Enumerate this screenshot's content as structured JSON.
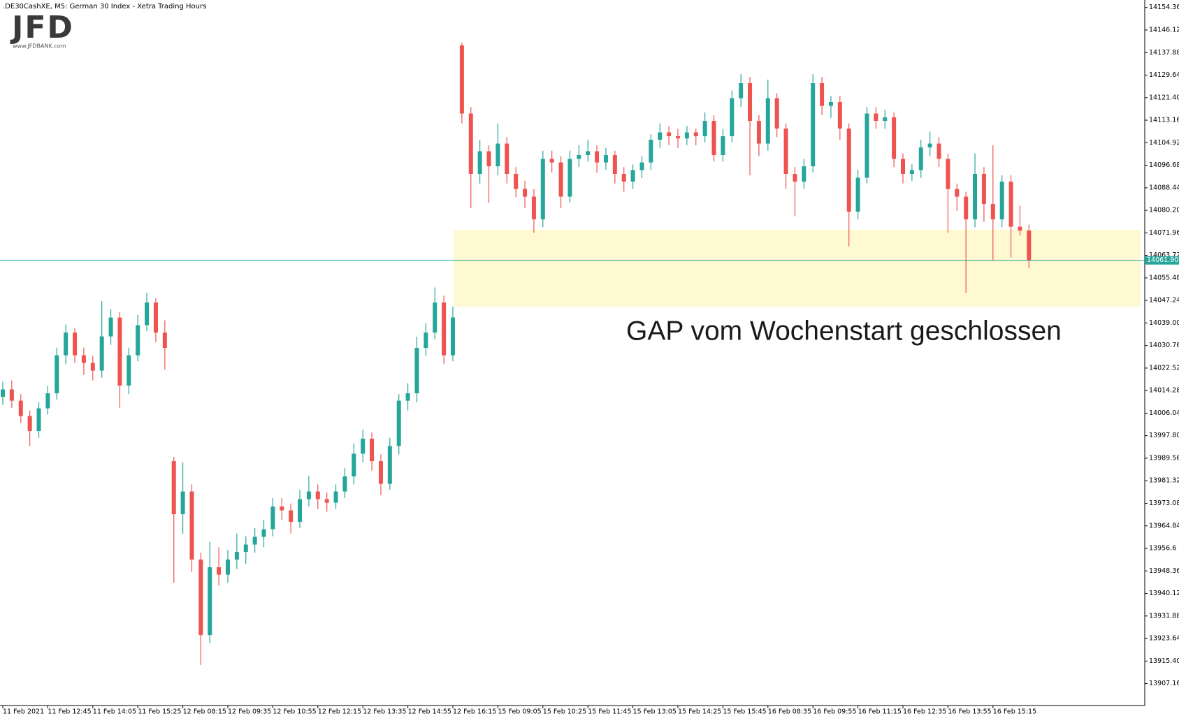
{
  "logo": {
    "text": "JFD",
    "url": "www.JFDBANK.com"
  },
  "chart_data": {
    "type": "candlestick",
    "title": ".DE30CashXE, M5:  German 30 Index  - Xetra Trading Hours",
    "annotation": "GAP vom Wochenstart geschlossen",
    "up_color": "#26a69a",
    "down_color": "#ef5350",
    "highlight": {
      "from": 14044.9,
      "to": 14073.1,
      "color": "#fff9d2"
    },
    "current_price": {
      "value": 14061.9,
      "label": "14061.90",
      "color": "#26a69a"
    },
    "grid": false,
    "ylim": [
      13899.14,
      14157.1
    ],
    "yticks": [
      14154.36,
      14146.12,
      14137.88,
      14129.64,
      {
        "value": 14121.4,
        "label": "14121.40"
      },
      14113.16,
      14104.92,
      14096.68,
      14088.44,
      {
        "value": 14080.2,
        "label": "14080.20"
      },
      14071.96,
      14063.72,
      14055.48,
      14047.24,
      {
        "value": 14039,
        "label": "14039.00"
      },
      14030.76,
      14022.52,
      14014.28,
      14006.04,
      {
        "value": 13997.8,
        "label": "13997.80"
      },
      13989.56,
      13981.32,
      13973.08,
      13964.84,
      13956.6,
      13948.36,
      13940.12,
      13931.88,
      13923.64,
      {
        "value": 13915.4,
        "label": "13915.40"
      },
      13907.16
    ],
    "categories": [
      "11 Feb 2021",
      null,
      null,
      null,
      null,
      "11 Feb 12:45",
      null,
      null,
      null,
      null,
      "11 Feb 14:05",
      null,
      null,
      null,
      null,
      "11 Feb 15:25",
      null,
      null,
      null,
      null,
      "12 Feb 08:15",
      null,
      null,
      null,
      null,
      "12 Feb 09:35",
      null,
      null,
      null,
      null,
      "12 Feb 10:55",
      null,
      null,
      null,
      null,
      "12 Feb 12:15",
      null,
      null,
      null,
      null,
      "12 Feb 13:35",
      null,
      null,
      null,
      null,
      "12 Feb 14:55",
      null,
      null,
      null,
      null,
      "12 Feb 16:15",
      null,
      null,
      null,
      null,
      "15 Feb 09:05",
      null,
      null,
      null,
      null,
      "15 Feb 10:25",
      null,
      null,
      null,
      null,
      "15 Feb 11:45",
      null,
      null,
      null,
      null,
      "15 Feb 13:05",
      null,
      null,
      null,
      null,
      "15 Feb 14:25",
      null,
      null,
      null,
      null,
      "15 Feb 15:45",
      null,
      null,
      null,
      null,
      "16 Feb 08:35",
      null,
      null,
      null,
      null,
      "16 Feb 09:55",
      null,
      null,
      null,
      null,
      "16 Feb 11:15",
      null,
      null,
      null,
      null,
      "16 Feb 12:35",
      null,
      null,
      null,
      null,
      "16 Feb 13:55",
      null,
      null,
      null,
      null,
      "16 Feb 15:15",
      null,
      null,
      null,
      null
    ],
    "open": [
      14012.0,
      14014.7,
      14010.6,
      14005.0,
      13999.5,
      14007.8,
      14013.3,
      14027.2,
      14035.5,
      14027.2,
      14024.4,
      14021.6,
      14034.1,
      14041.0,
      14016.1,
      14027.2,
      14038.2,
      14046.5,
      14035.5,
      13988.5,
      13969.1,
      13977.4,
      13952.5,
      13924.9,
      13949.7,
      13947.0,
      13952.5,
      13955.3,
      13958.0,
      13960.8,
      13963.6,
      13971.9,
      13970.5,
      13966.3,
      13974.6,
      13977.4,
      13974.6,
      13973.3,
      13977.4,
      13982.9,
      13991.2,
      13996.7,
      13988.5,
      13980.2,
      13994.0,
      14010.6,
      14013.3,
      14029.9,
      14035.5,
      14046.5,
      14027.2,
      14140.5,
      14115.6,
      14093.5,
      14101.8,
      14096.3,
      14104.6,
      14093.5,
      14088.0,
      14085.2,
      14076.9,
      14099.0,
      14097.7,
      14085.2,
      14099.0,
      14100.4,
      14101.8,
      14097.7,
      14100.4,
      14093.5,
      14090.7,
      14094.9,
      14097.7,
      14106.0,
      14108.7,
      14107.3,
      14106.5,
      14108.7,
      14107.3,
      14112.9,
      14100.4,
      14107.3,
      14121.2,
      14126.7,
      14112.9,
      14104.6,
      14121.2,
      14110.1,
      14093.5,
      14090.7,
      14096.3,
      14126.7,
      14118.4,
      14119.8,
      14110.1,
      14079.7,
      14092.1,
      14115.6,
      14112.9,
      14114.2,
      14099.0,
      14093.5,
      14094.9,
      14103.2,
      14104.6,
      14099.0,
      14088.0,
      14085.2,
      14076.9,
      14093.5,
      14082.5,
      14076.9,
      14090.7,
      14074.2,
      14072.8
    ],
    "high": [
      14017.5,
      14018.0,
      14013.0,
      14007.0,
      14010.0,
      14016.0,
      14030.0,
      14038.5,
      14037.0,
      14030.0,
      14027.0,
      14047.0,
      14044.0,
      14043.0,
      14030.0,
      14042.0,
      14050.0,
      14048.0,
      14040.0,
      13990.0,
      13988.0,
      13980.0,
      13955.0,
      13959.0,
      13957.0,
      13956.0,
      13962.0,
      13961.0,
      13964.0,
      13967.0,
      13975.0,
      13975.0,
      13973.0,
      13978.0,
      13983.0,
      13980.0,
      13977.0,
      13980.0,
      13986.0,
      13995.0,
      14000.0,
      13999.0,
      13991.0,
      13997.0,
      14013.0,
      14017.0,
      14034.0,
      14039.0,
      14052.0,
      14049.0,
      14045.0,
      14141.5,
      14118.0,
      14106.0,
      14104.0,
      14112.0,
      14107.0,
      14096.0,
      14091.0,
      14088.0,
      14102.0,
      14102.0,
      14100.0,
      14102.0,
      14104.0,
      14106.0,
      14104.0,
      14103.0,
      14102.0,
      14096.0,
      14097.0,
      14100.0,
      14108.0,
      14112.0,
      14111.0,
      14110.0,
      14111.0,
      14110.0,
      14116.0,
      14115.0,
      14110.0,
      14124.0,
      14130.0,
      14129.0,
      14115.0,
      14128.0,
      14123.0,
      14112.0,
      14096.0,
      14099.0,
      14130.0,
      14129.0,
      14122.0,
      14122.0,
      14112.0,
      14095.0,
      14118.0,
      14118.0,
      14117.0,
      14116.0,
      14101.0,
      14097.0,
      14106.0,
      14109.0,
      14107.0,
      14101.0,
      14090.0,
      14087.0,
      14101.0,
      14096.0,
      14104.0,
      14093.0,
      14093.0,
      14082.0,
      14075.0
    ],
    "low": [
      14009.0,
      14008.0,
      14002.5,
      13994.0,
      13997.0,
      14005.5,
      14011.0,
      14024.0,
      14024.5,
      14020.0,
      14018.0,
      14019.0,
      14031.0,
      14008.0,
      14013.0,
      14025.0,
      14036.0,
      14032.0,
      14022.0,
      13944.0,
      13962.0,
      13948.0,
      13914.0,
      13922.0,
      13943.0,
      13944.0,
      13949.0,
      13951.0,
      13955.0,
      13957.0,
      13961.0,
      13967.0,
      13962.0,
      13964.0,
      13972.0,
      13971.0,
      13970.0,
      13971.0,
      13975.0,
      13980.0,
      13988.0,
      13985.0,
      13976.0,
      13978.0,
      13991.0,
      14007.0,
      14010.0,
      14027.0,
      14033.0,
      14024.0,
      14025.0,
      14112.0,
      14081.0,
      14090.0,
      14083.0,
      14093.0,
      14090.0,
      14085.0,
      14081.0,
      14072.0,
      14074.0,
      14094.0,
      14081.0,
      14083.0,
      14096.0,
      14098.0,
      14094.0,
      14095.0,
      14090.0,
      14087.0,
      14088.0,
      14092.0,
      14095.0,
      14103.0,
      14104.0,
      14103.0,
      14104.0,
      14104.0,
      14105.0,
      14098.0,
      14098.0,
      14105.0,
      14118.0,
      14093.0,
      14100.0,
      14102.0,
      14107.0,
      14088.0,
      14078.0,
      14088.0,
      14094.0,
      14115.0,
      14114.0,
      14106.0,
      14067.0,
      14077.0,
      14090.0,
      14110.0,
      14110.0,
      14096.0,
      14090.0,
      14091.0,
      14092.0,
      14100.0,
      14096.0,
      14072.0,
      14080.0,
      14050.0,
      14074.0,
      14076.0,
      14062.0,
      14074.0,
      14063.0,
      14071.0,
      14059.0
    ],
    "close": [
      14014.7,
      14010.6,
      14005.0,
      13999.5,
      14007.8,
      14013.3,
      14027.2,
      14035.5,
      14027.2,
      14024.4,
      14021.6,
      14034.1,
      14041.0,
      14016.1,
      14027.2,
      14038.2,
      14046.5,
      14035.5,
      14029.9,
      13969.1,
      13977.4,
      13952.5,
      13924.9,
      13949.7,
      13947.0,
      13952.5,
      13955.3,
      13958.0,
      13960.8,
      13963.6,
      13971.9,
      13970.5,
      13966.3,
      13974.6,
      13977.4,
      13974.6,
      13973.3,
      13977.4,
      13982.9,
      13991.2,
      13996.7,
      13988.5,
      13980.2,
      13994.0,
      14010.6,
      14013.3,
      14029.9,
      14035.5,
      14046.5,
      14027.2,
      14041.0,
      14115.6,
      14093.5,
      14101.8,
      14096.3,
      14104.6,
      14093.5,
      14088.0,
      14085.2,
      14076.9,
      14099.0,
      14097.7,
      14085.2,
      14099.0,
      14100.4,
      14101.8,
      14097.7,
      14100.4,
      14093.5,
      14090.7,
      14094.9,
      14097.7,
      14106.0,
      14108.7,
      14107.3,
      14106.5,
      14108.7,
      14107.3,
      14112.9,
      14100.4,
      14107.3,
      14121.2,
      14126.7,
      14112.9,
      14104.6,
      14121.2,
      14110.1,
      14093.5,
      14090.7,
      14096.3,
      14126.7,
      14118.4,
      14119.8,
      14110.1,
      14079.7,
      14092.1,
      14115.6,
      14112.9,
      14114.2,
      14099.0,
      14093.5,
      14094.9,
      14103.2,
      14104.6,
      14099.0,
      14088.0,
      14085.2,
      14076.9,
      14093.5,
      14082.5,
      14076.9,
      14090.7,
      14074.2,
      14072.8,
      14061.9
    ]
  }
}
